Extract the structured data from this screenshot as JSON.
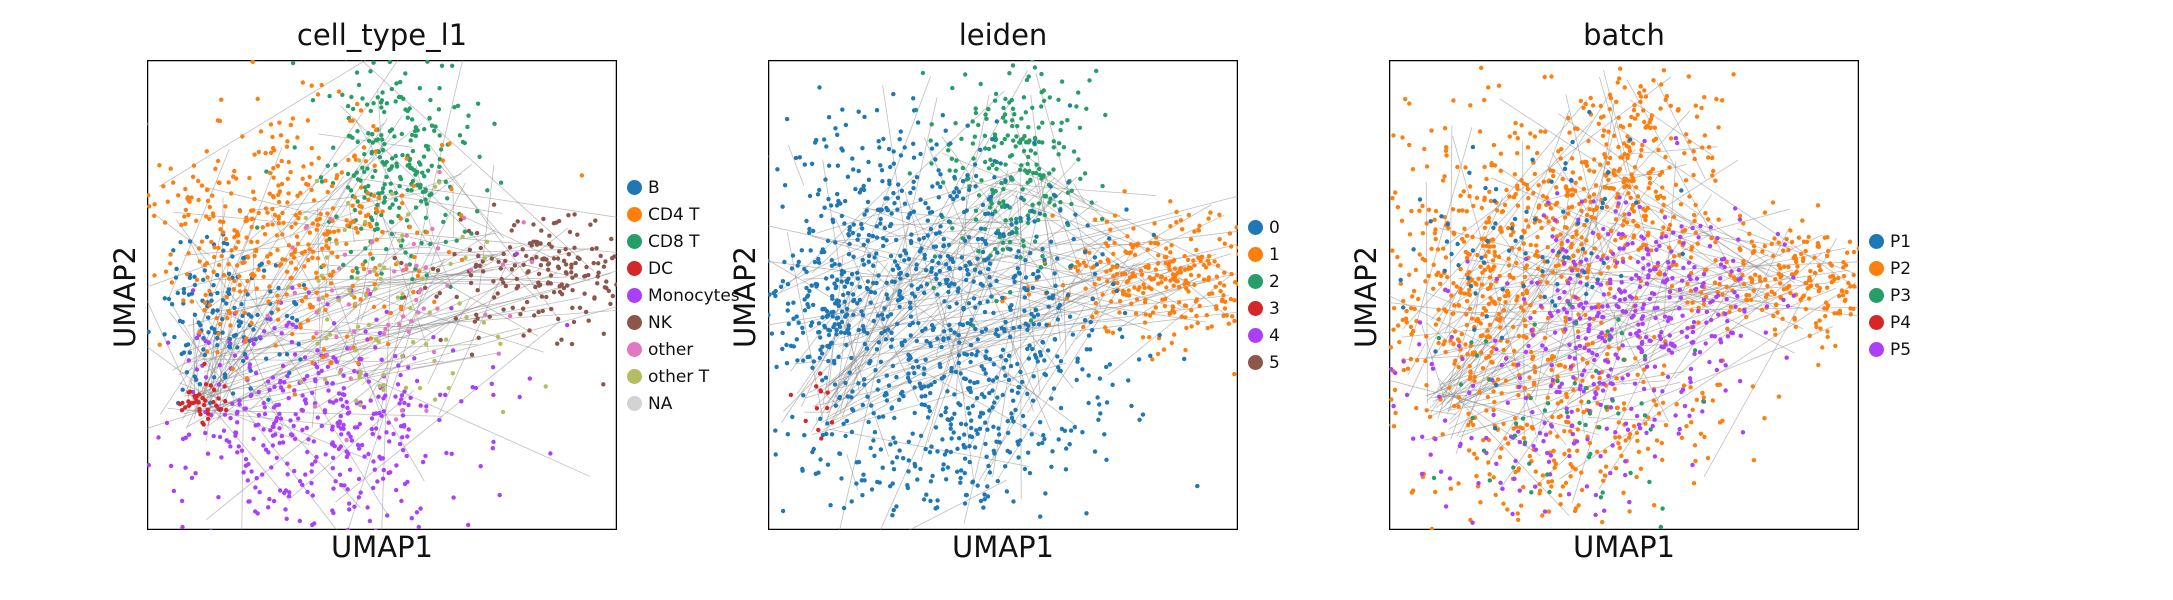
{
  "chart_data": [
    {
      "type": "scatter",
      "title": "cell_type_l1",
      "xlabel": "UMAP1",
      "ylabel": "UMAP2",
      "grid": false,
      "ticks": false,
      "legend_placement": "right",
      "legend": [
        {
          "label": "B",
          "color": "#1f77b4"
        },
        {
          "label": "CD4 T",
          "color": "#ff7f0e"
        },
        {
          "label": "CD8 T",
          "color": "#279e68"
        },
        {
          "label": "DC",
          "color": "#d62728"
        },
        {
          "label": "Monocytes",
          "color": "#aa40fc"
        },
        {
          "label": "NK",
          "color": "#8c564b"
        },
        {
          "label": "other",
          "color": "#e377c2"
        },
        {
          "label": "other T",
          "color": "#b5bd61"
        },
        {
          "label": "NA",
          "color": "#d3d3d3"
        }
      ]
    },
    {
      "type": "scatter",
      "title": "leiden",
      "xlabel": "UMAP1",
      "ylabel": "UMAP2",
      "grid": false,
      "ticks": false,
      "legend_placement": "right",
      "legend": [
        {
          "label": "0",
          "color": "#1f77b4"
        },
        {
          "label": "1",
          "color": "#ff7f0e"
        },
        {
          "label": "2",
          "color": "#279e68"
        },
        {
          "label": "3",
          "color": "#d62728"
        },
        {
          "label": "4",
          "color": "#aa40fc"
        },
        {
          "label": "5",
          "color": "#8c564b"
        }
      ]
    },
    {
      "type": "scatter",
      "title": "batch",
      "xlabel": "UMAP1",
      "ylabel": "UMAP2",
      "grid": false,
      "ticks": false,
      "legend_placement": "right",
      "legend": [
        {
          "label": "P1",
          "color": "#1f77b4"
        },
        {
          "label": "P2",
          "color": "#ff7f0e"
        },
        {
          "label": "P3",
          "color": "#279e68"
        },
        {
          "label": "P4",
          "color": "#d62728"
        },
        {
          "label": "P5",
          "color": "#aa40fc"
        }
      ]
    }
  ]
}
